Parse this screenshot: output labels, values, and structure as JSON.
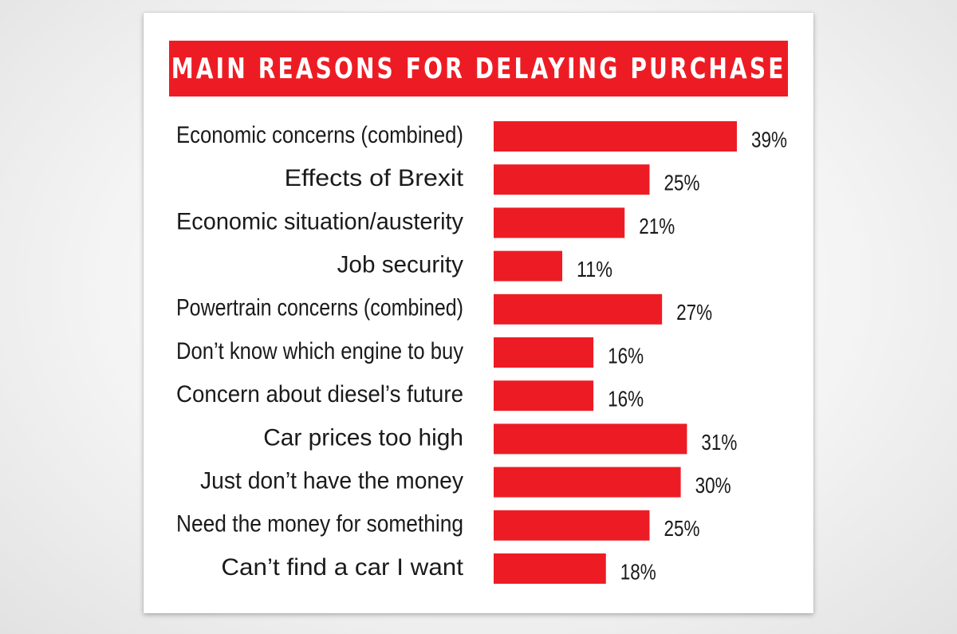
{
  "chart_data": {
    "type": "bar",
    "orientation": "horizontal",
    "title": "MAIN REASONS FOR DELAYING PURCHASE",
    "categories": [
      "Economic concerns (combined)",
      "Effects of Brexit",
      "Economic situation/austerity",
      "Job security",
      "Powertrain concerns (combined)",
      "Don’t know which engine to buy",
      "Concern about diesel’s future",
      "Car prices too high",
      "Just don’t have the money",
      "Need the money for something",
      "Can’t find a car I want"
    ],
    "values": [
      39,
      25,
      21,
      11,
      27,
      16,
      16,
      31,
      30,
      25,
      18
    ],
    "value_labels": [
      "39%",
      "25%",
      "21%",
      "11%",
      "27%",
      "16%",
      "16%",
      "31%",
      "30%",
      "25%",
      "18%"
    ],
    "unit": "%",
    "grid": false,
    "legend": "none",
    "bar_color": "#ed1c24"
  }
}
